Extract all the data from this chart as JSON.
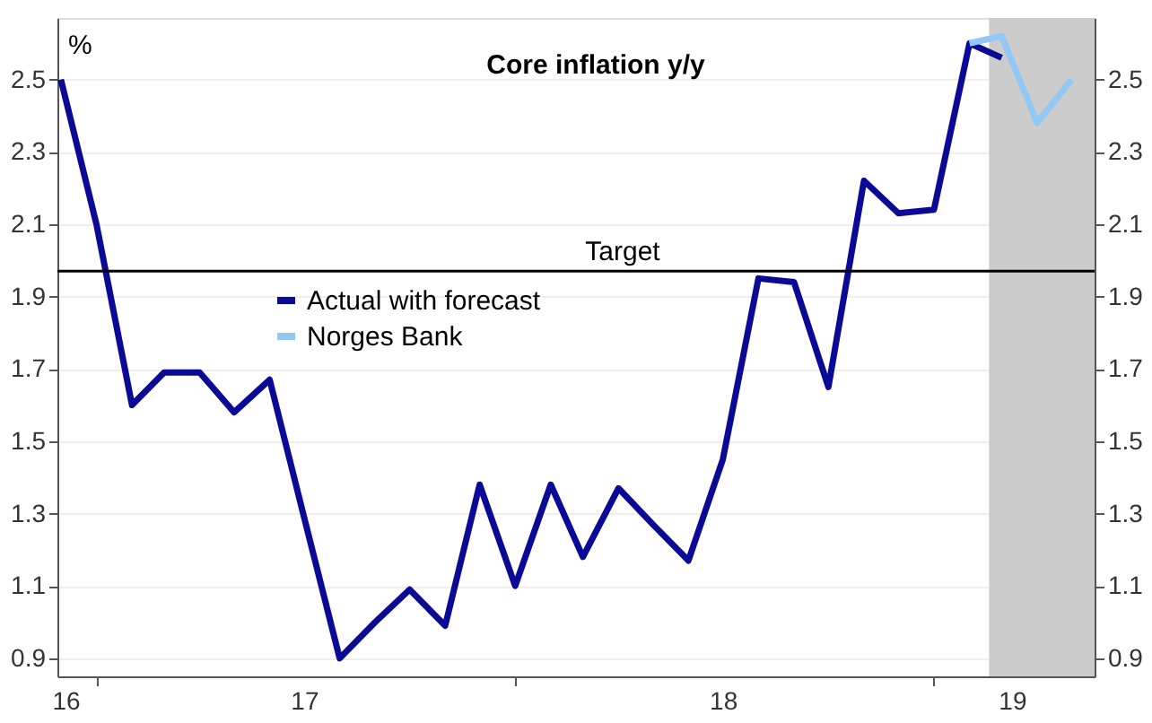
{
  "chart_data": {
    "type": "line",
    "title": "Core inflation y/y",
    "annotations": [
      "%"
    ],
    "x": [
      "2016-12",
      "2017-01",
      "2017-02",
      "2017-03",
      "2017-04",
      "2017-05",
      "2017-06",
      "2017-07",
      "2017-08",
      "2017-09",
      "2017-10",
      "2017-11",
      "2017-12",
      "2018-01",
      "2018-02",
      "2018-03",
      "2018-04",
      "2018-05",
      "2018-06",
      "2018-07",
      "2018-08",
      "2018-09",
      "2018-10",
      "2018-11",
      "2018-12",
      "2019-01",
      "2019-02",
      "2019-03"
    ],
    "series": [
      {
        "name": "Actual with forecast",
        "color": "#0a0a96",
        "values": [
          2.5,
          2.1,
          1.6,
          1.69,
          1.69,
          1.58,
          1.67,
          1.29,
          0.9,
          1.0,
          1.09,
          0.99,
          1.38,
          1.1,
          1.38,
          1.18,
          1.37,
          1.27,
          1.17,
          1.45,
          1.95,
          1.94,
          1.65,
          2.22,
          2.13,
          2.14,
          2.6,
          2.56
        ]
      },
      {
        "name": "Norges Bank",
        "color": "#92c8f5",
        "x": [
          "2019-02",
          "2019-03",
          "2019-04",
          "2019-05"
        ],
        "values": [
          2.6,
          2.62,
          2.38,
          2.5
        ]
      }
    ],
    "xlim": [
      "2016-11-28",
      "2019-05-21"
    ],
    "xticks": [
      {
        "value": "2016-12-05",
        "label": "16"
      },
      {
        "value": "2017-01-01",
        "label": null
      },
      {
        "value": "2017-07-01",
        "label": "17"
      },
      {
        "value": "2018-01-01",
        "label": null
      },
      {
        "value": "2018-07-01",
        "label": "18"
      },
      {
        "value": "2019-01-01",
        "label": null
      },
      {
        "value": "2019-03-10",
        "label": "19"
      }
    ],
    "ylim": [
      0.85,
      2.67
    ],
    "yticks": [
      0.9,
      1.1,
      1.3,
      1.5,
      1.7,
      1.9,
      2.1,
      2.3,
      2.5
    ],
    "y2lim": [
      0.85,
      2.67
    ],
    "y2ticks": [
      0.9,
      1.1,
      1.3,
      1.5,
      1.7,
      1.9,
      2.1,
      2.3,
      2.5
    ],
    "ref_lines": [
      {
        "axis": "y",
        "value": 1.97,
        "label": "Target",
        "color": "#000000"
      }
    ],
    "bands": [
      {
        "axis": "x",
        "from": "2019-02-18",
        "to": "2019-05-21",
        "color": "#cccccc"
      }
    ],
    "grid": "y",
    "legend": "top left",
    "line_style": "solid",
    "marker": "none"
  }
}
